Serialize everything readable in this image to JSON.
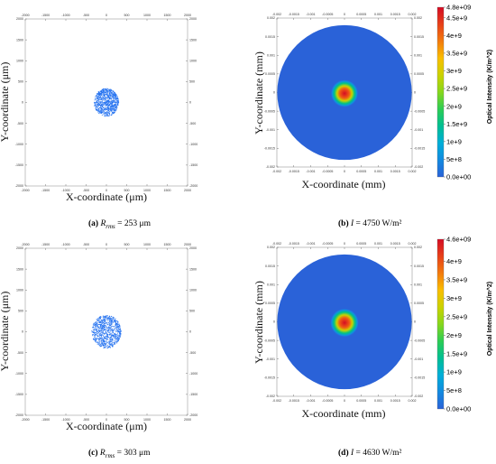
{
  "chart_data": [
    {
      "id": "a",
      "type": "scatter",
      "title": "",
      "xlabel": "X-coordinate (μm)",
      "ylabel": "Y-coordinate (μm)",
      "xlim": [
        -2000,
        2000
      ],
      "ylim": [
        -2000,
        2000
      ],
      "x_ticks": [
        "-2000",
        "-1500",
        "-1000",
        "-500",
        "0",
        "500",
        "1000",
        "1500",
        "2000"
      ],
      "y_ticks": [
        "2000",
        "1500",
        "1000",
        "500",
        "0",
        "-500",
        "-1000",
        "-1500",
        "-2000"
      ],
      "spot": {
        "center": [
          0,
          0
        ],
        "radius": 320,
        "rms_radius_um": 253
      },
      "caption": {
        "letter": "(a)",
        "symbol": "R",
        "sub": "rms",
        "text": " = 253 μm"
      }
    },
    {
      "id": "b",
      "type": "heatmap",
      "title": "",
      "xlabel": "X-coordinate (mm)",
      "ylabel": "Y-coordinate (mm)",
      "xlim": [
        -0.002,
        0.002
      ],
      "ylim": [
        -0.002,
        0.002
      ],
      "x_ticks": [
        "-0.002",
        "-0.0015",
        "-0.001",
        "-0.0005",
        "0",
        "0.0005",
        "0.001",
        "0.0015",
        "0.002"
      ],
      "y_ticks": [
        "0.002",
        "0.0015",
        "0.001",
        "0.0005",
        "0",
        "-0.0005",
        "-0.001",
        "-0.0015",
        "-0.002"
      ],
      "colorbar": {
        "label": "Optical Intensity (K/m^2)",
        "ticks": [
          "4.8e+09",
          "4.5e+9",
          "4e+9",
          "3.5e+9",
          "3e+9",
          "2.5e+9",
          "2e+9",
          "1.5e+9",
          "1e+9",
          "5e+8",
          "0.0e+00"
        ],
        "min": 0,
        "max": 4800000000
      },
      "spot": {
        "center": [
          0,
          0
        ],
        "radius": 0.00025,
        "peak": 4800000000
      },
      "caption": {
        "letter": "(b)",
        "symbol": "I",
        "text": " = 4750 W/m²"
      }
    },
    {
      "id": "c",
      "type": "scatter",
      "title": "",
      "xlabel": "X-coordinate (μm)",
      "ylabel": "Y-coordinate (μm)",
      "xlim": [
        -2000,
        2000
      ],
      "ylim": [
        -2000,
        2000
      ],
      "x_ticks": [
        "-2000",
        "-1500",
        "-1000",
        "-500",
        "0",
        "500",
        "1000",
        "1500",
        "2000"
      ],
      "y_ticks": [
        "2000",
        "1500",
        "1000",
        "500",
        "0",
        "-500",
        "-1000",
        "-1500",
        "-2000"
      ],
      "spot": {
        "center": [
          0,
          0
        ],
        "radius": 380,
        "rms_radius_um": 303
      },
      "caption": {
        "letter": "(c)",
        "symbol": "R",
        "sub": "rms",
        "text": " = 303 μm"
      }
    },
    {
      "id": "d",
      "type": "heatmap",
      "title": "",
      "xlabel": "X-coordinate (mm)",
      "ylabel": "Y-coordinate (mm)",
      "xlim": [
        -0.002,
        0.002
      ],
      "ylim": [
        -0.002,
        0.002
      ],
      "x_ticks": [
        "-0.002",
        "-0.0015",
        "-0.001",
        "-0.0005",
        "0",
        "0.0005",
        "0.001",
        "0.0015",
        "0.002"
      ],
      "y_ticks": [
        "0.002",
        "0.0015",
        "0.001",
        "0.0005",
        "0",
        "-0.0005",
        "-0.001",
        "-0.0015",
        "-0.002"
      ],
      "colorbar": {
        "label": "Optical Intensity (K/m^2)",
        "ticks": [
          "4.6e+09",
          "4e+9",
          "3.5e+9",
          "3e+9",
          "2.5e+9",
          "2e+9",
          "1.5e+9",
          "1e+9",
          "5e+8",
          "0.0e+00"
        ],
        "min": 0,
        "max": 4600000000
      },
      "spot": {
        "center": [
          0,
          0
        ],
        "radius": 0.00026,
        "peak": 4600000000
      },
      "caption": {
        "letter": "(d)",
        "symbol": "I",
        "text": " = 4630 W/m²"
      }
    }
  ],
  "colors": {
    "spot_blue": "#1e6ff0",
    "field_blue": "#2a62d8",
    "heat_low": "#2a62d8",
    "heat_mid": "#00c870",
    "heat_high": "#d40c24"
  }
}
